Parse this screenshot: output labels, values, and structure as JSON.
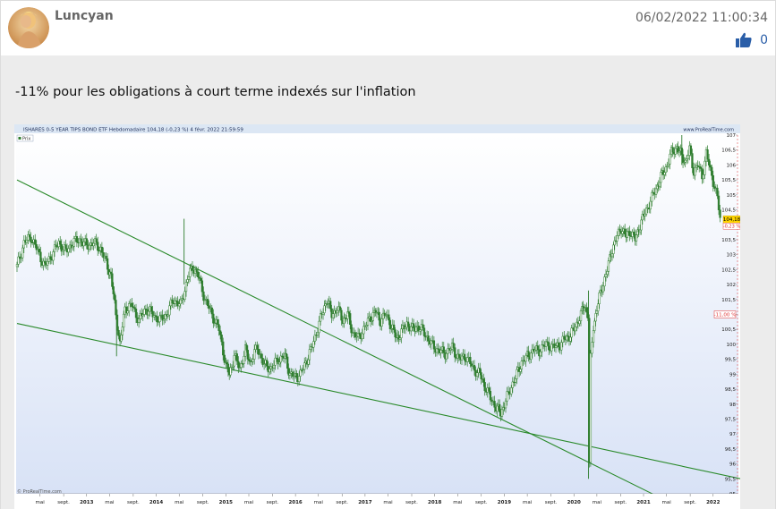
{
  "post": {
    "username": "Luncyan",
    "timestamp": "06/02/2022 11:00:34",
    "like_count": "0",
    "message": "-11% pour les obligations à court terme indexés sur l'inflation"
  },
  "icons": {
    "avatar": "avatar-portrait",
    "like": "thumbs-up-icon"
  },
  "colors": {
    "candles": "#2e7d2e",
    "trendlines": "#2a8a2a",
    "price_marker": "#ffd400",
    "pct_marker": "#e03030",
    "like": "#2a5ea8"
  },
  "chart_data": {
    "type": "line",
    "header": "ISHARES 0-5 YEAR TIPS BOND ETF Hebdomadaire 104,18 (-0,23 %) 4 févr. 2022 21:59:59",
    "legend_label": "Prix",
    "watermark": "© ProRealTime.com",
    "header_right": "www.ProRealTime.com",
    "last_price_label": "104,18",
    "last_change_label": "-0,23 %",
    "annotation_label": "-11,00 %",
    "ylim": [
      95,
      107
    ],
    "y_ticks": [
      "107",
      "106,5",
      "106",
      "105,5",
      "105",
      "104,5",
      "104",
      "103,5",
      "103",
      "102,5",
      "102",
      "101,5",
      "101",
      "100,5",
      "100",
      "99,5",
      "99",
      "98,5",
      "98",
      "97,5",
      "97",
      "96,5",
      "96",
      "95,5",
      "95"
    ],
    "x_ticks": [
      {
        "label": "mai",
        "date": 2012.33
      },
      {
        "label": "sept.",
        "date": 2012.67
      },
      {
        "label": "2013",
        "date": 2013.0,
        "bold": true
      },
      {
        "label": "mai",
        "date": 2013.33
      },
      {
        "label": "sept.",
        "date": 2013.67
      },
      {
        "label": "2014",
        "date": 2014.0,
        "bold": true
      },
      {
        "label": "mai",
        "date": 2014.33
      },
      {
        "label": "sept.",
        "date": 2014.67
      },
      {
        "label": "2015",
        "date": 2015.0,
        "bold": true
      },
      {
        "label": "mai",
        "date": 2015.33
      },
      {
        "label": "sept.",
        "date": 2015.67
      },
      {
        "label": "2016",
        "date": 2016.0,
        "bold": true
      },
      {
        "label": "mai",
        "date": 2016.33
      },
      {
        "label": "sept.",
        "date": 2016.67
      },
      {
        "label": "2017",
        "date": 2017.0,
        "bold": true
      },
      {
        "label": "mai",
        "date": 2017.33
      },
      {
        "label": "sept.",
        "date": 2017.67
      },
      {
        "label": "2018",
        "date": 2018.0,
        "bold": true
      },
      {
        "label": "mai",
        "date": 2018.33
      },
      {
        "label": "sept.",
        "date": 2018.67
      },
      {
        "label": "2019",
        "date": 2019.0,
        "bold": true
      },
      {
        "label": "mai",
        "date": 2019.33
      },
      {
        "label": "sept.",
        "date": 2019.67
      },
      {
        "label": "2020",
        "date": 2020.0,
        "bold": true
      },
      {
        "label": "mai",
        "date": 2020.33
      },
      {
        "label": "sept.",
        "date": 2020.67
      },
      {
        "label": "2021",
        "date": 2021.0,
        "bold": true
      },
      {
        "label": "mai",
        "date": 2021.33
      },
      {
        "label": "sept.",
        "date": 2021.67
      },
      {
        "label": "2022",
        "date": 2022.0,
        "bold": true
      }
    ],
    "price_path": [
      [
        2012.0,
        102.6
      ],
      [
        2012.1,
        103.4
      ],
      [
        2012.2,
        103.6
      ],
      [
        2012.3,
        103.1
      ],
      [
        2012.4,
        102.6
      ],
      [
        2012.5,
        103.0
      ],
      [
        2012.6,
        103.4
      ],
      [
        2012.7,
        103.1
      ],
      [
        2012.8,
        103.4
      ],
      [
        2012.9,
        103.5
      ],
      [
        2013.0,
        103.3
      ],
      [
        2013.1,
        103.4
      ],
      [
        2013.2,
        103.2
      ],
      [
        2013.3,
        102.6
      ],
      [
        2013.35,
        102.3
      ],
      [
        2013.42,
        101.0
      ],
      [
        2013.48,
        100.0
      ],
      [
        2013.55,
        101.2
      ],
      [
        2013.65,
        101.3
      ],
      [
        2013.75,
        100.8
      ],
      [
        2013.85,
        101.2
      ],
      [
        2013.95,
        101.0
      ],
      [
        2014.05,
        100.8
      ],
      [
        2014.15,
        101.0
      ],
      [
        2014.25,
        101.5
      ],
      [
        2014.35,
        101.3
      ],
      [
        2014.45,
        102.2
      ],
      [
        2014.52,
        102.6
      ],
      [
        2014.6,
        102.3
      ],
      [
        2014.7,
        101.5
      ],
      [
        2014.8,
        101.0
      ],
      [
        2014.9,
        100.5
      ],
      [
        2015.0,
        99.3
      ],
      [
        2015.05,
        99.0
      ],
      [
        2015.12,
        99.6
      ],
      [
        2015.2,
        99.2
      ],
      [
        2015.28,
        99.8
      ],
      [
        2015.35,
        99.4
      ],
      [
        2015.45,
        99.9
      ],
      [
        2015.55,
        99.3
      ],
      [
        2015.65,
        99.2
      ],
      [
        2015.75,
        99.5
      ],
      [
        2015.85,
        99.6
      ],
      [
        2015.92,
        99.0
      ],
      [
        2016.0,
        98.9
      ],
      [
        2016.07,
        99.0
      ],
      [
        2016.15,
        99.4
      ],
      [
        2016.22,
        99.8
      ],
      [
        2016.3,
        100.4
      ],
      [
        2016.38,
        101.0
      ],
      [
        2016.45,
        101.5
      ],
      [
        2016.52,
        101.0
      ],
      [
        2016.6,
        101.2
      ],
      [
        2016.68,
        100.8
      ],
      [
        2016.75,
        101.0
      ],
      [
        2016.82,
        100.4
      ],
      [
        2016.9,
        100.2
      ],
      [
        2017.0,
        100.6
      ],
      [
        2017.08,
        100.9
      ],
      [
        2017.15,
        101.1
      ],
      [
        2017.22,
        100.8
      ],
      [
        2017.3,
        101.0
      ],
      [
        2017.38,
        100.6
      ],
      [
        2017.45,
        100.2
      ],
      [
        2017.52,
        100.4
      ],
      [
        2017.6,
        100.7
      ],
      [
        2017.68,
        100.5
      ],
      [
        2017.75,
        100.6
      ],
      [
        2017.85,
        100.4
      ],
      [
        2017.95,
        100.0
      ],
      [
        2018.05,
        99.8
      ],
      [
        2018.15,
        99.7
      ],
      [
        2018.25,
        99.9
      ],
      [
        2018.35,
        99.5
      ],
      [
        2018.45,
        99.6
      ],
      [
        2018.55,
        99.2
      ],
      [
        2018.65,
        99.0
      ],
      [
        2018.72,
        98.6
      ],
      [
        2018.8,
        98.2
      ],
      [
        2018.88,
        97.9
      ],
      [
        2018.95,
        97.7
      ],
      [
        2019.02,
        98.1
      ],
      [
        2019.1,
        98.6
      ],
      [
        2019.18,
        99.0
      ],
      [
        2019.25,
        99.4
      ],
      [
        2019.33,
        99.6
      ],
      [
        2019.42,
        99.8
      ],
      [
        2019.5,
        99.8
      ],
      [
        2019.6,
        100.0
      ],
      [
        2019.7,
        99.9
      ],
      [
        2019.8,
        100.0
      ],
      [
        2019.88,
        100.2
      ],
      [
        2019.95,
        100.3
      ],
      [
        2020.02,
        100.6
      ],
      [
        2020.1,
        101.0
      ],
      [
        2020.15,
        101.3
      ],
      [
        2020.2,
        101.0
      ],
      [
        2020.22,
        96.0
      ],
      [
        2020.24,
        99.5
      ],
      [
        2020.28,
        100.6
      ],
      [
        2020.33,
        101.2
      ],
      [
        2020.4,
        101.9
      ],
      [
        2020.48,
        102.5
      ],
      [
        2020.55,
        103.2
      ],
      [
        2020.62,
        103.6
      ],
      [
        2020.68,
        103.9
      ],
      [
        2020.75,
        103.6
      ],
      [
        2020.8,
        103.8
      ],
      [
        2020.88,
        103.5
      ],
      [
        2020.95,
        104.0
      ],
      [
        2021.02,
        104.4
      ],
      [
        2021.1,
        104.8
      ],
      [
        2021.18,
        105.2
      ],
      [
        2021.25,
        105.6
      ],
      [
        2021.32,
        105.9
      ],
      [
        2021.4,
        106.4
      ],
      [
        2021.48,
        106.6
      ],
      [
        2021.55,
        106.3
      ],
      [
        2021.6,
        106.1
      ],
      [
        2021.66,
        106.5
      ],
      [
        2021.72,
        105.8
      ],
      [
        2021.78,
        106.0
      ],
      [
        2021.84,
        105.6
      ],
      [
        2021.9,
        106.4
      ],
      [
        2021.96,
        105.8
      ],
      [
        2022.02,
        105.3
      ],
      [
        2022.06,
        104.9
      ],
      [
        2022.1,
        104.18
      ]
    ],
    "spikes": [
      {
        "date": 2013.43,
        "low": 99.6,
        "high": 101.2
      },
      {
        "date": 2014.4,
        "low": 102.0,
        "high": 104.2
      },
      {
        "date": 2020.21,
        "low": 95.5,
        "high": 101.8
      },
      {
        "date": 2021.55,
        "low": 106.0,
        "high": 107.0
      }
    ],
    "trendlines": [
      {
        "from": [
          2012.0,
          105.5
        ],
        "to": [
          2021.3,
          94.8
        ]
      },
      {
        "from": [
          2012.0,
          100.7
        ],
        "to": [
          2022.4,
          95.5
        ]
      }
    ],
    "x_range": [
      2012.0,
      2022.35
    ]
  }
}
